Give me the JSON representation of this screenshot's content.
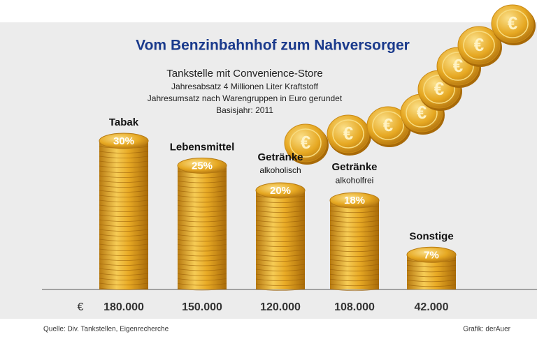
{
  "chart_data": {
    "type": "bar",
    "title": "Vom Benzinbahnhof zum Nahversorger",
    "subtitle": [
      "Tankstelle mit Convenience-Store",
      "Jahresabsatz 4 Millionen Liter Kraftstoff",
      "Jahresumsatz nach Warengruppen in Euro gerundet",
      "Basisjahr: 2011"
    ],
    "categories": [
      "Tabak",
      "Lebensmittel",
      "Getränke",
      "Getränke",
      "Sonstige"
    ],
    "sublabels": [
      null,
      null,
      "alkoholisch",
      "alkoholfrei",
      null
    ],
    "values": [
      30,
      25,
      20,
      18,
      7
    ],
    "value_labels": [
      "30%",
      "25%",
      "20%",
      "18%",
      "7%"
    ],
    "currency": "€",
    "amounts": [
      180000,
      150000,
      120000,
      108000,
      42000
    ],
    "amount_labels": [
      "180.000",
      "150.000",
      "120.000",
      "108.000",
      "42.000"
    ],
    "color": "#e0a520",
    "title_color": "#1a3a8c",
    "source": "Quelle: Div. Tankstellen, Eigenrecherche",
    "credit": "Grafik: derAuer"
  }
}
